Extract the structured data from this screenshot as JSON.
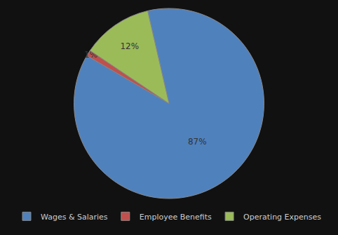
{
  "chart_data": {
    "type": "pie",
    "categories": [
      "Wages & Salaries",
      "Employee Benefits",
      "Operating Expenses"
    ],
    "values": [
      87,
      1,
      12
    ],
    "value_labels": [
      "87%",
      "1%",
      "12%"
    ],
    "colors": [
      "#4f81bd",
      "#c0504d",
      "#9bbb59"
    ],
    "data_labels": true,
    "legend": "bottom"
  }
}
